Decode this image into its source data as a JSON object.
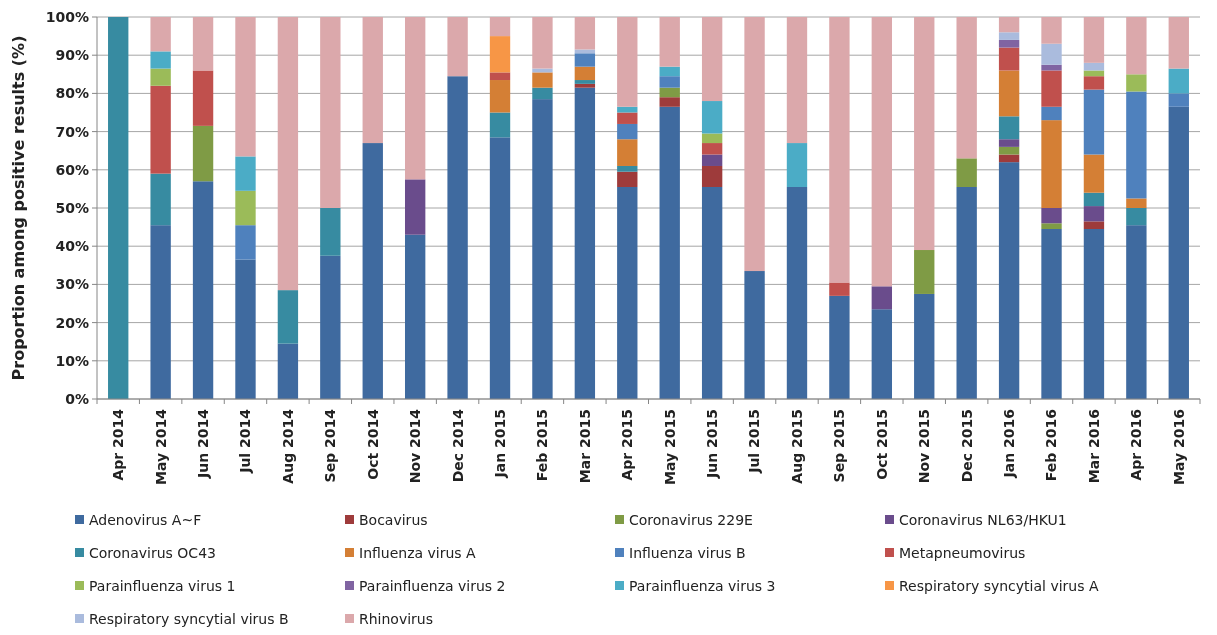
{
  "chart_data": {
    "type": "bar",
    "stacked": true,
    "ylabel": "Proportion among positive results (%)",
    "categories": [
      "Apr 2014",
      "May 2014",
      "Jun 2014",
      "Jul 2014",
      "Aug 2014",
      "Sep 2014",
      "Oct 2014",
      "Nov 2014",
      "Dec 2014",
      "Jan 2015",
      "Feb 2015",
      "Mar 2015",
      "Apr 2015",
      "May 2015",
      "Jun 2015",
      "Jul 2015",
      "Aug 2015",
      "Sep 2015",
      "Oct 2015",
      "Nov 2015",
      "Dec 2015",
      "Jan 2016",
      "Feb 2016",
      "Mar 2016",
      "Apr 2016",
      "May 2016"
    ],
    "ylim": [
      0,
      100
    ],
    "yticks": [
      {
        "value": 0,
        "label": "0%"
      },
      {
        "value": 10,
        "label": "10%"
      },
      {
        "value": 20,
        "label": "20%"
      },
      {
        "value": 30,
        "label": "30%"
      },
      {
        "value": 40,
        "label": "40%"
      },
      {
        "value": 50,
        "label": "50%"
      },
      {
        "value": 60,
        "label": "60%"
      },
      {
        "value": 70,
        "label": "70%"
      },
      {
        "value": 80,
        "label": "80%"
      },
      {
        "value": 90,
        "label": "90%"
      },
      {
        "value": 100,
        "label": "100%"
      }
    ],
    "grid": "y",
    "legend": "bottom",
    "series": [
      {
        "name": "Adenovirus A~F",
        "color": "#3f6a9f",
        "values": [
          null,
          45.5,
          57,
          36.5,
          14.5,
          37.5,
          67,
          43,
          84.5,
          68.5,
          78.5,
          81.5,
          55.5,
          76.5,
          55.5,
          33.5,
          55.5,
          27,
          23.5,
          27.5,
          55.5,
          62,
          44.5,
          44.5,
          45.5,
          76.5
        ]
      },
      {
        "name": "Bocavirus",
        "color": "#9e3b3b",
        "values": [
          null,
          null,
          null,
          null,
          null,
          null,
          null,
          null,
          null,
          null,
          null,
          1,
          4,
          2.5,
          5.5,
          null,
          null,
          null,
          null,
          null,
          null,
          2,
          null,
          2,
          null,
          null
        ]
      },
      {
        "name": "Coronavirus 229E",
        "color": "#7f9b45",
        "values": [
          null,
          null,
          14.5,
          null,
          null,
          null,
          null,
          null,
          null,
          null,
          null,
          null,
          null,
          2.5,
          null,
          null,
          null,
          null,
          null,
          11.5,
          7.5,
          2,
          1.5,
          null,
          null,
          null
        ]
      },
      {
        "name": "Coronavirus NL63/HKU1",
        "color": "#6a4c8c",
        "values": [
          null,
          null,
          null,
          null,
          null,
          null,
          null,
          14.5,
          null,
          null,
          null,
          null,
          null,
          null,
          3,
          null,
          null,
          null,
          6,
          null,
          null,
          2,
          4,
          4,
          null,
          null
        ]
      },
      {
        "name": "Coronavirus OC43",
        "color": "#378ba1",
        "values": [
          100,
          13.5,
          null,
          null,
          14,
          12.5,
          null,
          null,
          null,
          6.5,
          3,
          1,
          1.5,
          null,
          null,
          null,
          null,
          null,
          null,
          null,
          null,
          6,
          null,
          3.5,
          4.5,
          null
        ]
      },
      {
        "name": "Influenza virus A",
        "color": "#d47f35",
        "values": [
          null,
          null,
          null,
          null,
          null,
          null,
          null,
          null,
          null,
          8.5,
          4,
          3.5,
          7,
          null,
          null,
          null,
          null,
          null,
          null,
          null,
          null,
          12,
          23,
          10,
          2.5,
          null
        ]
      },
      {
        "name": "Influenza virus B",
        "color": "#4f81bd",
        "values": [
          null,
          null,
          null,
          9,
          null,
          null,
          null,
          null,
          null,
          null,
          null,
          3.5,
          4,
          3,
          null,
          null,
          null,
          null,
          null,
          null,
          null,
          null,
          3.5,
          17,
          28,
          3.5
        ]
      },
      {
        "name": "Metapneumovirus",
        "color": "#c0504d",
        "values": [
          null,
          23,
          14.5,
          null,
          null,
          null,
          null,
          null,
          null,
          2,
          null,
          null,
          3,
          null,
          3,
          null,
          null,
          3.5,
          null,
          null,
          null,
          6,
          9.5,
          3.5,
          null,
          null
        ]
      },
      {
        "name": "Parainfluenza virus 1",
        "color": "#9bbb59",
        "values": [
          null,
          4.5,
          null,
          9,
          null,
          null,
          null,
          null,
          null,
          null,
          null,
          null,
          null,
          null,
          2.5,
          null,
          null,
          null,
          null,
          null,
          null,
          null,
          null,
          1.5,
          4.5,
          null
        ]
      },
      {
        "name": "Parainfluenza virus 2",
        "color": "#8064a2",
        "values": [
          null,
          null,
          null,
          null,
          null,
          null,
          null,
          null,
          null,
          null,
          null,
          null,
          null,
          null,
          null,
          null,
          null,
          null,
          null,
          null,
          null,
          2,
          1.5,
          null,
          null,
          null
        ]
      },
      {
        "name": "Parainfluenza virus 3",
        "color": "#4bacc6",
        "values": [
          null,
          4.5,
          null,
          9,
          null,
          null,
          null,
          null,
          null,
          null,
          null,
          null,
          1.5,
          2.5,
          8.5,
          null,
          11.5,
          null,
          null,
          null,
          null,
          null,
          null,
          null,
          null,
          6.5
        ]
      },
      {
        "name": "Respiratory syncytial virus  A",
        "color": "#f79646",
        "values": [
          null,
          null,
          null,
          null,
          null,
          null,
          null,
          null,
          null,
          9.5,
          null,
          null,
          null,
          null,
          null,
          null,
          null,
          null,
          null,
          null,
          null,
          null,
          null,
          null,
          null,
          null
        ]
      },
      {
        "name": "Respiratory syncytial virus  B",
        "color": "#aabbdd",
        "values": [
          null,
          null,
          null,
          null,
          null,
          null,
          null,
          null,
          null,
          null,
          1,
          1,
          null,
          null,
          null,
          null,
          null,
          null,
          null,
          null,
          null,
          2,
          5.5,
          2,
          null,
          null
        ]
      },
      {
        "name": "Rhinovirus",
        "color": "#dba8ab",
        "values": [
          null,
          9,
          14,
          36.5,
          71.5,
          50,
          33,
          42.5,
          15.5,
          5,
          13.5,
          8.5,
          23.5,
          13,
          22,
          66.5,
          33,
          69.5,
          70.5,
          61,
          37,
          4,
          7,
          12,
          15,
          13.5
        ]
      }
    ]
  }
}
